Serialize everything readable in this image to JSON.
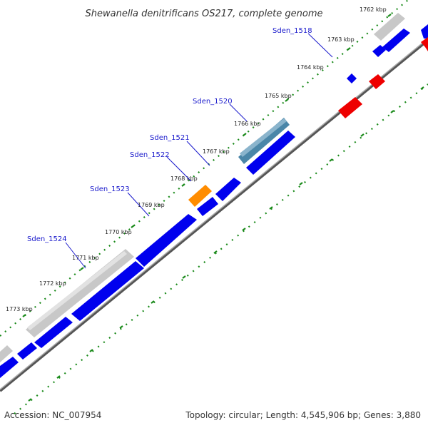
{
  "title": "Shewanella denitrificans OS217, complete genome",
  "footer": {
    "accession": "Accession: NC_007954",
    "summary": "Topology: circular; Length: 4,545,906 bp; Genes: 3,880"
  },
  "kbp_labels": [
    "1762 kbp",
    "1763 kbp",
    "1764 kbp",
    "1765 kbp",
    "1766 kbp",
    "1767 kbp",
    "1768 kbp",
    "1769 kbp",
    "1770 kbp",
    "1771 kbp",
    "1772 kbp",
    "1773 kbp"
  ],
  "gene_labels": [
    "Sden_1518",
    "Sden_1520",
    "Sden_1521",
    "Sden_1522",
    "Sden_1523",
    "Sden_1524"
  ],
  "colors": {
    "cds": "#0000ee",
    "pseudo_gray": "#c8c8c8",
    "rna_orange": "#ff8c00",
    "highlight_teal": "#4a86a8",
    "reverse_red": "#ee0000",
    "backbone": "#888888",
    "tick_green": "#1a8a1a",
    "label_blue": "#1a1acc"
  }
}
